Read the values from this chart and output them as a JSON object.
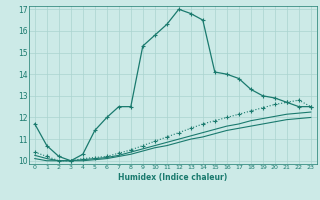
{
  "xlabel": "Humidex (Indice chaleur)",
  "background_color": "#cceae7",
  "grid_color": "#aad4d0",
  "line_color": "#1a7a6e",
  "xlim": [
    -0.5,
    23.5
  ],
  "ylim": [
    9.85,
    17.15
  ],
  "yticks": [
    10,
    11,
    12,
    13,
    14,
    15,
    16,
    17
  ],
  "xticks": [
    0,
    1,
    2,
    3,
    4,
    5,
    6,
    7,
    8,
    9,
    10,
    11,
    12,
    13,
    14,
    15,
    16,
    17,
    18,
    19,
    20,
    21,
    22,
    23
  ],
  "line1_x": [
    0,
    1,
    2,
    3,
    4,
    5,
    6,
    7,
    8,
    9,
    10,
    11,
    12,
    13,
    14,
    15,
    16,
    17,
    18,
    19,
    20,
    21,
    22,
    23
  ],
  "line1_y": [
    11.7,
    10.7,
    10.2,
    10.0,
    10.3,
    11.4,
    12.0,
    12.5,
    12.5,
    15.3,
    15.8,
    16.3,
    17.0,
    16.8,
    16.5,
    14.1,
    14.0,
    13.8,
    13.3,
    13.0,
    12.9,
    12.7,
    12.5,
    12.5
  ],
  "line2_x": [
    0,
    1,
    2,
    3,
    4,
    5,
    6,
    7,
    8,
    9,
    10,
    11,
    12,
    13,
    14,
    15,
    16,
    17,
    18,
    19,
    20,
    21,
    22,
    23
  ],
  "line2_y": [
    10.4,
    10.2,
    10.0,
    10.0,
    10.1,
    10.15,
    10.2,
    10.35,
    10.5,
    10.7,
    10.9,
    11.1,
    11.3,
    11.5,
    11.7,
    11.85,
    12.0,
    12.15,
    12.3,
    12.45,
    12.6,
    12.7,
    12.8,
    12.5
  ],
  "line3_x": [
    0,
    1,
    2,
    3,
    4,
    5,
    6,
    7,
    8,
    9,
    10,
    11,
    12,
    13,
    14,
    15,
    16,
    17,
    18,
    19,
    20,
    21,
    22,
    23
  ],
  "line3_y": [
    10.25,
    10.1,
    10.0,
    10.0,
    10.05,
    10.1,
    10.15,
    10.25,
    10.4,
    10.55,
    10.7,
    10.85,
    11.0,
    11.15,
    11.3,
    11.45,
    11.6,
    11.7,
    11.85,
    11.95,
    12.05,
    12.15,
    12.2,
    12.25
  ],
  "line4_x": [
    0,
    1,
    2,
    3,
    4,
    5,
    6,
    7,
    8,
    9,
    10,
    11,
    12,
    13,
    14,
    15,
    16,
    17,
    18,
    19,
    20,
    21,
    22,
    23
  ],
  "line4_y": [
    10.1,
    10.0,
    10.0,
    10.0,
    10.0,
    10.05,
    10.1,
    10.2,
    10.3,
    10.45,
    10.6,
    10.7,
    10.85,
    11.0,
    11.1,
    11.25,
    11.4,
    11.5,
    11.6,
    11.7,
    11.8,
    11.9,
    11.95,
    12.0
  ]
}
